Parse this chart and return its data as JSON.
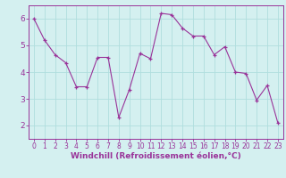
{
  "x": [
    0,
    1,
    2,
    3,
    4,
    5,
    6,
    7,
    8,
    9,
    10,
    11,
    12,
    13,
    14,
    15,
    16,
    17,
    18,
    19,
    20,
    21,
    22,
    23
  ],
  "y": [
    6.0,
    5.2,
    4.65,
    4.35,
    3.45,
    3.45,
    4.55,
    4.55,
    2.3,
    3.35,
    4.7,
    4.5,
    6.2,
    6.15,
    5.65,
    5.35,
    5.35,
    4.65,
    4.95,
    4.0,
    3.95,
    2.95,
    3.5,
    2.1
  ],
  "line_color": "#993399",
  "marker": "+",
  "bg_color": "#d4f0f0",
  "grid_color": "#b0dede",
  "xlabel": "Windchill (Refroidissement éolien,°C)",
  "xlim": [
    -0.5,
    23.5
  ],
  "ylim": [
    1.5,
    6.5
  ],
  "yticks": [
    2,
    3,
    4,
    5,
    6
  ],
  "xticks": [
    0,
    1,
    2,
    3,
    4,
    5,
    6,
    7,
    8,
    9,
    10,
    11,
    12,
    13,
    14,
    15,
    16,
    17,
    18,
    19,
    20,
    21,
    22,
    23
  ],
  "xtick_labels": [
    "0",
    "1",
    "2",
    "3",
    "4",
    "5",
    "6",
    "7",
    "8",
    "9",
    "10",
    "11",
    "12",
    "13",
    "14",
    "15",
    "16",
    "17",
    "18",
    "19",
    "20",
    "21",
    "22",
    "23"
  ],
  "color": "#993399",
  "tick_fontsize": 5.5,
  "xlabel_fontsize": 6.5,
  "linewidth": 0.8,
  "markersize": 3.5,
  "markeredgewidth": 0.9
}
